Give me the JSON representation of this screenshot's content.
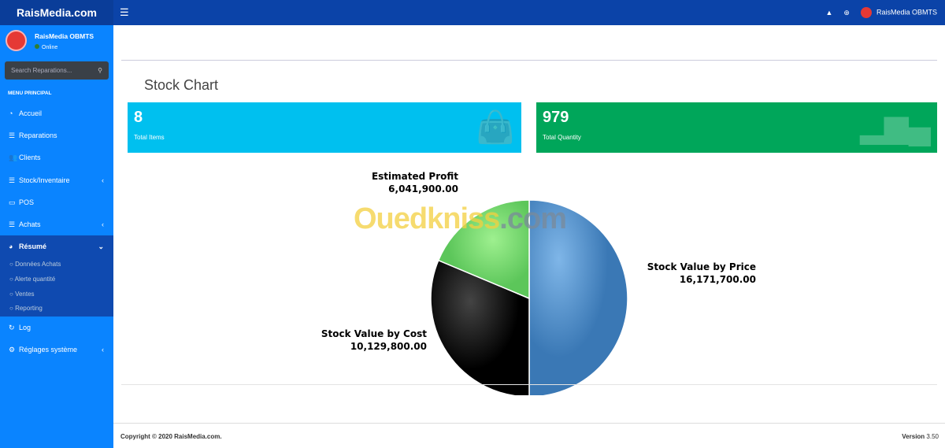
{
  "app": {
    "brand": "RaisMedia.com",
    "user": "RaisMedia OBMTS",
    "status": "Online"
  },
  "search": {
    "placeholder": "Search Reparations..."
  },
  "sidebar": {
    "header": "MENU PRINCIPAL",
    "items": [
      {
        "label": "Accueil",
        "icon": "dashboard-icon"
      },
      {
        "label": "Reparations",
        "icon": "list-icon"
      },
      {
        "label": "Clients",
        "icon": "users-icon"
      },
      {
        "label": "Stock/Inventaire",
        "icon": "list-icon",
        "chevron": "‹"
      },
      {
        "label": "POS",
        "icon": "monitor-icon"
      },
      {
        "label": "Achats",
        "icon": "list-icon",
        "chevron": "‹"
      },
      {
        "label": "Résumé",
        "icon": "pie-chart-icon",
        "chevron": "⌄"
      }
    ],
    "subitems": [
      "Données Achats",
      "Alerte quantité",
      "Ventes",
      "Reporting"
    ],
    "items2": [
      {
        "label": "Log",
        "icon": "refresh-icon"
      },
      {
        "label": "Réglages système",
        "icon": "gear-icon",
        "chevron": "‹"
      }
    ]
  },
  "page": {
    "title": "Stock Chart"
  },
  "stats": [
    {
      "value": "8",
      "label": "Total Items",
      "color": "#00c0ef",
      "icon": "shopping-bag-icon"
    },
    {
      "value": "979",
      "label": "Total Quantity",
      "color": "#00a65a",
      "icon": "bar-chart-icon"
    }
  ],
  "watermark": "Ouedkniss.com",
  "chart_data": {
    "type": "pie",
    "slices": [
      {
        "label": "Stock Value by Price",
        "value": 16171700,
        "display": "16,171,700.00",
        "color": "#5b9bd5"
      },
      {
        "label": "Stock Value by Cost",
        "value": 10129800,
        "display": "10,129,800.00",
        "color": "#222222"
      },
      {
        "label": "Estimated Profit",
        "value": 6041900,
        "display": "6,041,900.00",
        "color": "#7ed67a"
      }
    ]
  },
  "footer": {
    "copyright": "Copyright © 2020 RaisMedia.com.",
    "version_label": "Version",
    "version": "3.50"
  }
}
